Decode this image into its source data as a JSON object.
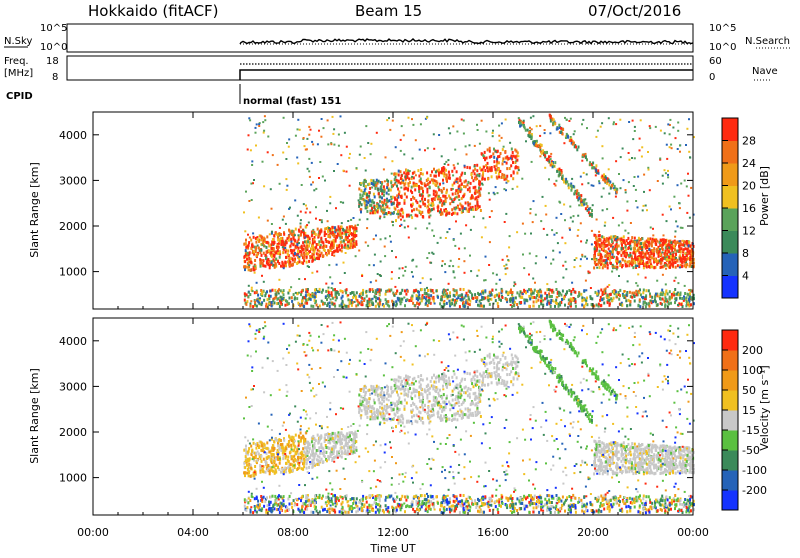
{
  "header": {
    "station": "Hokkaido (fitACF)",
    "beam": "Beam 15",
    "date": "07/Oct/2016"
  },
  "strips": {
    "nsky_label": "N.Sky",
    "nsky_top_tick": "10^5",
    "nsky_bottom_tick": "10^0",
    "nsearch_label": "N.Search",
    "nsearch_top_tick": "10^5",
    "nsearch_bottom_tick": "10^0",
    "freq_label": "Freq.",
    "freq_unit": "[MHz]",
    "freq_top_tick": "18",
    "freq_bottom_tick": "8",
    "nave_label": "Nave",
    "nave_top_tick": "60",
    "nave_bottom_tick": "0",
    "cpid_label": "CPID",
    "cpid_value": "normal (fast) 151"
  },
  "chart_data": [
    {
      "type": "heatmap",
      "title": "",
      "xlabel": "",
      "ylabel": "Slant Range [km]",
      "x_range_hours": [
        0,
        24
      ],
      "ylim": [
        180,
        4500
      ],
      "yticks": [
        1000,
        2000,
        3000,
        4000
      ],
      "ytick_labels": [
        "1000",
        "2000",
        "3000",
        "4000"
      ],
      "colorbar": {
        "label": "Power [dB]",
        "ticks": [
          "4",
          "8",
          "12",
          "16",
          "20",
          "24",
          "28"
        ],
        "colors": [
          "#1533ff",
          "#2563b8",
          "#3b8a5a",
          "#5aa35a",
          "#f0c020",
          "#f09a18",
          "#f07018",
          "#ff2a10"
        ]
      },
      "echo_regions": [
        {
          "t_start": 6.0,
          "t_end": 10.5,
          "range_low": 900,
          "range_high": 1900
        },
        {
          "t_start": 10.5,
          "t_end": 15.5,
          "range_low": 2100,
          "range_high": 3400
        },
        {
          "t_start": 15.5,
          "t_end": 17.0,
          "range_low": 2800,
          "range_high": 3700
        },
        {
          "t_start": 20.0,
          "t_end": 24.0,
          "range_low": 1000,
          "range_high": 1900
        }
      ]
    },
    {
      "type": "heatmap",
      "title": "",
      "xlabel": "Time UT",
      "ylabel": "Slant Range [km]",
      "x_range_hours": [
        0,
        24
      ],
      "xticks": [
        "00:00",
        "04:00",
        "08:00",
        "12:00",
        "16:00",
        "20:00",
        "00:00"
      ],
      "ylim": [
        180,
        4500
      ],
      "yticks": [
        1000,
        2000,
        3000,
        4000
      ],
      "ytick_labels": [
        "1000",
        "2000",
        "3000",
        "4000"
      ],
      "colorbar": {
        "label": "Velocity [m s⁻¹]",
        "ticks": [
          "200",
          "100",
          "50",
          "15",
          "-15",
          "-50",
          "-100",
          "-200"
        ],
        "colors": [
          "#1533ff",
          "#2563b8",
          "#3b8a5a",
          "#5ac040",
          "#c8c8c8",
          "#f0c020",
          "#f09a18",
          "#f07018",
          "#ff2a10"
        ]
      }
    }
  ]
}
